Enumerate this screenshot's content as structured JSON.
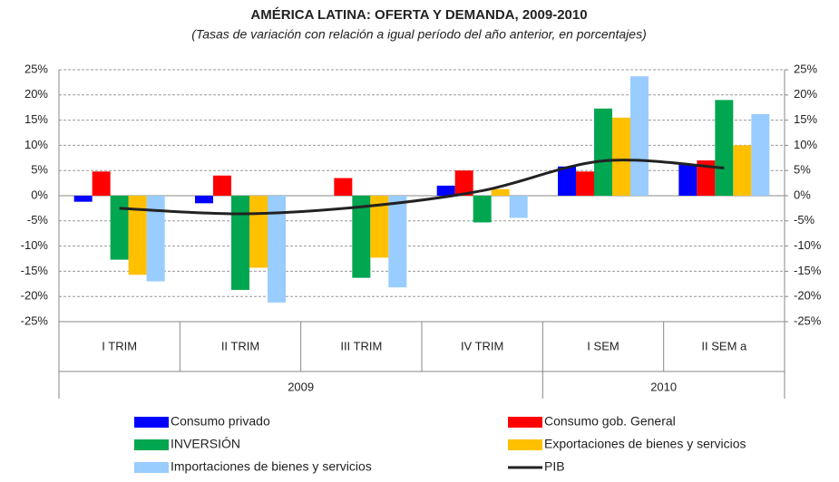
{
  "chart_data": {
    "type": "bar",
    "title": "AMÉRICA LATINA: OFERTA Y DEMANDA, 2009-2010",
    "subtitle": "(Tasas de variación  con relación a igual período del año anterior, en porcentajes)",
    "categories": [
      "I TRIM",
      "II TRIM",
      "III TRIM",
      "IV TRIM",
      "I SEM",
      "II SEM a"
    ],
    "groups": [
      {
        "label": "2009",
        "span": 4
      },
      {
        "label": "2010",
        "span": 2
      }
    ],
    "series": [
      {
        "name": "Consumo privado",
        "color": "#0000ff",
        "values": [
          -1.2,
          -1.5,
          0,
          2,
          5.8,
          6.2
        ]
      },
      {
        "name": "Consumo gob. General",
        "color": "#ff0000",
        "values": [
          4.8,
          4,
          3.5,
          5,
          4.8,
          7
        ]
      },
      {
        "name": "INVERSIÓN",
        "color": "#00a650",
        "values": [
          -12.7,
          -18.7,
          -16.3,
          -5.3,
          17.3,
          19
        ]
      },
      {
        "name": "Exportaciones de bienes y servicios",
        "color": "#ffc000",
        "values": [
          -15.7,
          -14.3,
          -12.3,
          1.3,
          15.5,
          10
        ]
      },
      {
        "name": "Importaciones de bienes y servicios",
        "color": "#99ccff",
        "values": [
          -17,
          -21.2,
          -18.2,
          -4.4,
          23.7,
          16.2
        ]
      },
      {
        "name": "PIB",
        "color": "#222222",
        "type": "line",
        "values": [
          -2.5,
          -3.6,
          -2.2,
          1,
          6.9,
          5.5
        ]
      }
    ],
    "ylim": [
      -25,
      25
    ],
    "yticks": [
      {
        "value": -25,
        "label": "-25%"
      },
      {
        "value": -20,
        "label": "-20%"
      },
      {
        "value": -15,
        "label": "-15%"
      },
      {
        "value": -10,
        "label": "-10%"
      },
      {
        "value": -5,
        "label": "-5%"
      },
      {
        "value": 0,
        "label": "0%"
      },
      {
        "value": 5,
        "label": "5%"
      },
      {
        "value": 10,
        "label": "10%"
      },
      {
        "value": 15,
        "label": "15%"
      },
      {
        "value": 20,
        "label": "20%"
      },
      {
        "value": 25,
        "label": "25%"
      }
    ],
    "y2lim": [
      -25,
      25
    ],
    "y2ticks": [
      {
        "value": -25,
        "label": "-25%"
      },
      {
        "value": -20,
        "label": "-20%"
      },
      {
        "value": -15,
        "label": "-15%"
      },
      {
        "value": -10,
        "label": "-10%"
      },
      {
        "value": -5,
        "label": "-5%"
      },
      {
        "value": 0,
        "label": "0%"
      },
      {
        "value": 5,
        "label": "5%"
      },
      {
        "value": 10,
        "label": "10%"
      },
      {
        "value": 15,
        "label": "15%"
      },
      {
        "value": 20,
        "label": "20%"
      },
      {
        "value": 25,
        "label": "25%"
      }
    ],
    "grid": true
  }
}
